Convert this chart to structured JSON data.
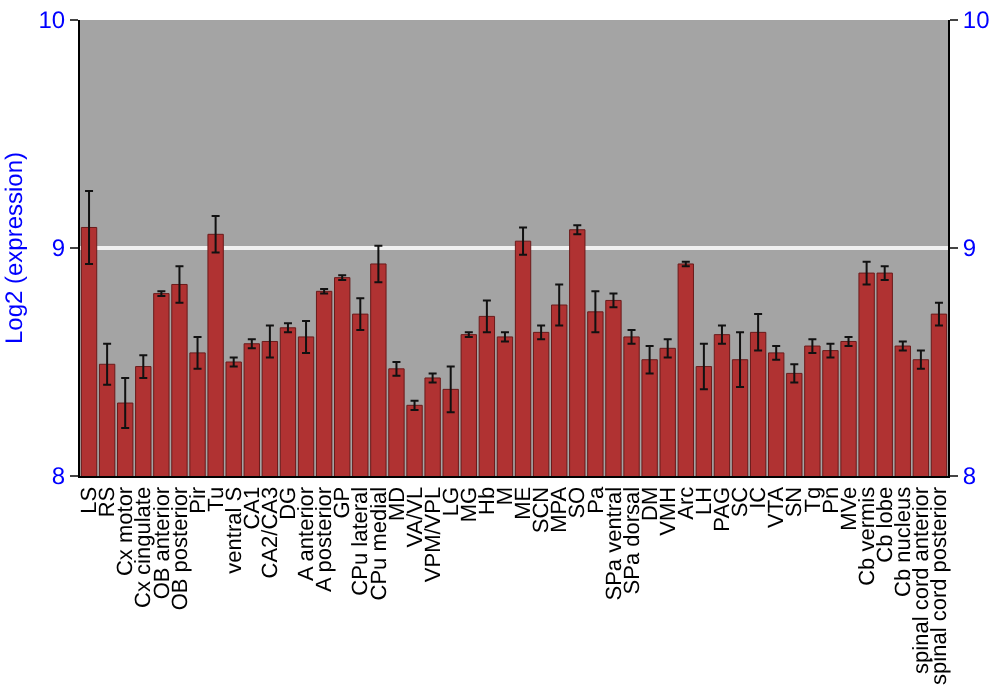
{
  "chart_data": {
    "type": "bar",
    "ylabel": "Log2 (expression)",
    "categories": [
      "LS",
      "RS",
      "Cx motor",
      "Cx cingulate",
      "OB anterior",
      "OB posterior",
      "Pir",
      "Tu",
      "ventral S",
      "CA1",
      "CA2/CA3",
      "DG",
      "A anterior",
      "A posterior",
      "GP",
      "CPu lateral",
      "CPu medial",
      "MD",
      "VA/VL",
      "VPM/VPL",
      "LG",
      "MG",
      "Hb",
      "M",
      "ME",
      "SCN",
      "MPA",
      "SO",
      "Pa",
      "SPa ventral",
      "SPa dorsal",
      "DM",
      "VMH",
      "Arc",
      "LH",
      "PAG",
      "SC",
      "IC",
      "VTA",
      "SN",
      "Tg",
      "Pn",
      "MVe",
      "Cb vermis",
      "Cb lobe",
      "Cb nucleus",
      "spinal cord anterior",
      "spinal cord posterior"
    ],
    "values": [
      9.09,
      8.49,
      8.32,
      8.48,
      8.8,
      8.84,
      8.54,
      9.06,
      8.5,
      8.58,
      8.59,
      8.65,
      8.61,
      8.81,
      8.87,
      8.71,
      8.93,
      8.47,
      8.31,
      8.43,
      8.38,
      8.62,
      8.7,
      8.61,
      9.03,
      8.63,
      8.75,
      9.08,
      8.72,
      8.77,
      8.61,
      8.51,
      8.56,
      8.93,
      8.48,
      8.62,
      8.51,
      8.63,
      8.54,
      8.45,
      8.57,
      8.55,
      8.59,
      8.89,
      8.89,
      8.57,
      8.51,
      8.71
    ],
    "errors": [
      0.16,
      0.09,
      0.11,
      0.05,
      0.01,
      0.08,
      0.07,
      0.08,
      0.02,
      0.02,
      0.07,
      0.02,
      0.07,
      0.01,
      0.01,
      0.07,
      0.08,
      0.03,
      0.02,
      0.02,
      0.1,
      0.01,
      0.07,
      0.02,
      0.06,
      0.03,
      0.09,
      0.02,
      0.09,
      0.03,
      0.03,
      0.06,
      0.04,
      0.01,
      0.1,
      0.04,
      0.12,
      0.08,
      0.03,
      0.04,
      0.03,
      0.03,
      0.02,
      0.05,
      0.03,
      0.02,
      0.04,
      0.05
    ],
    "color": "#b03232",
    "ylim": [
      8,
      10
    ],
    "yticks": [
      8,
      9,
      10
    ],
    "y2lim": [
      8,
      10
    ],
    "y2ticks": [
      8,
      9,
      10
    ],
    "grid": true
  }
}
